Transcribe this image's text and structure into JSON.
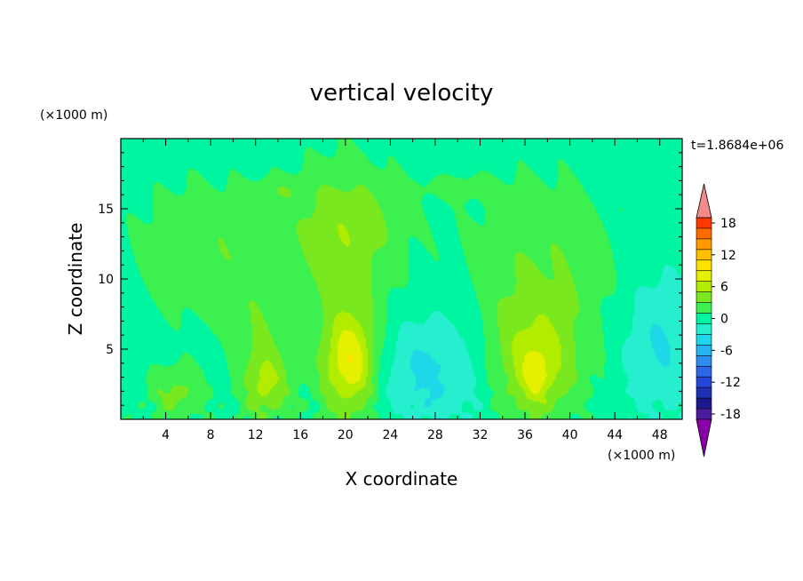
{
  "chart_data": {
    "type": "heatmap",
    "title": "vertical velocity",
    "xlabel": "X coordinate",
    "ylabel": "Z coordinate",
    "x_unit": "(×1000 m)",
    "y_unit": "(×1000 m)",
    "time_label": "t=1.8684e+06",
    "xlim": [
      0,
      50
    ],
    "ylim": [
      0,
      20
    ],
    "xticks": [
      "4",
      "8",
      "12",
      "16",
      "20",
      "24",
      "28",
      "32",
      "36",
      "40",
      "44",
      "48"
    ],
    "yticks": [
      "5",
      "10",
      "15"
    ],
    "colorbar": {
      "min": -21,
      "max": 21,
      "step": 2,
      "tick_labels": [
        "18",
        "12",
        "6",
        "0",
        "-6",
        "-12",
        "-18"
      ],
      "tick_values": [
        18,
        12,
        6,
        0,
        -6,
        -12,
        -18
      ],
      "colors": [
        "#8a00a8",
        "#4b1d9e",
        "#1a1a8c",
        "#1f2fb4",
        "#2546d6",
        "#2c66ea",
        "#2f8df0",
        "#25b4f2",
        "#1ed7e8",
        "#26efd0",
        "#00f5a0",
        "#3cf050",
        "#79e81f",
        "#b2ec00",
        "#e4f000",
        "#ffe100",
        "#ffc000",
        "#ff9a00",
        "#ff6a00",
        "#ff3a00",
        "#f28a8a"
      ]
    },
    "features": [
      {
        "x": 5,
        "z": 1.8,
        "sx": 1.8,
        "sz": 1.4,
        "amp": 3.6
      },
      {
        "x": 13,
        "z": 2.5,
        "sx": 1.4,
        "sz": 1.6,
        "amp": 3.6
      },
      {
        "x": 20.5,
        "z": 4.0,
        "sx": 1.6,
        "sz": 2.4,
        "amp": 7.4
      },
      {
        "x": 20.0,
        "z": 8.0,
        "sx": 3.0,
        "sz": 6.5,
        "amp": 2.8
      },
      {
        "x": 36.5,
        "z": 4.0,
        "sx": 3.2,
        "sz": 3.0,
        "amp": 5.6
      },
      {
        "x": 37.0,
        "z": 3.0,
        "sx": 1.0,
        "sz": 1.5,
        "amp": 3.0
      },
      {
        "x": 37.5,
        "z": 11.0,
        "sx": 5.0,
        "sz": 4.5,
        "amp": 2.8
      },
      {
        "x": 7.5,
        "z": 12.0,
        "sx": 4.5,
        "sz": 3.5,
        "amp": 2.8
      },
      {
        "x": 12.5,
        "z": 5.0,
        "sx": 1.6,
        "sz": 4.0,
        "amp": 2.6
      },
      {
        "x": 20,
        "z": 14.0,
        "sx": 3.8,
        "sz": 2.8,
        "amp": 2.8
      },
      {
        "x": 28,
        "z": 3.5,
        "sx": 4.5,
        "sz": 2.8,
        "amp": -3.8
      },
      {
        "x": 48,
        "z": 5.5,
        "sx": 2.5,
        "sz": 3.5,
        "amp": -3.2
      },
      {
        "x": 30,
        "z": 16.5,
        "sx": 2.5,
        "sz": 0.6,
        "amp": 1.6
      },
      {
        "x": 14,
        "z": 16.3,
        "sx": 1.8,
        "sz": 0.6,
        "amp": 1.6
      }
    ]
  }
}
